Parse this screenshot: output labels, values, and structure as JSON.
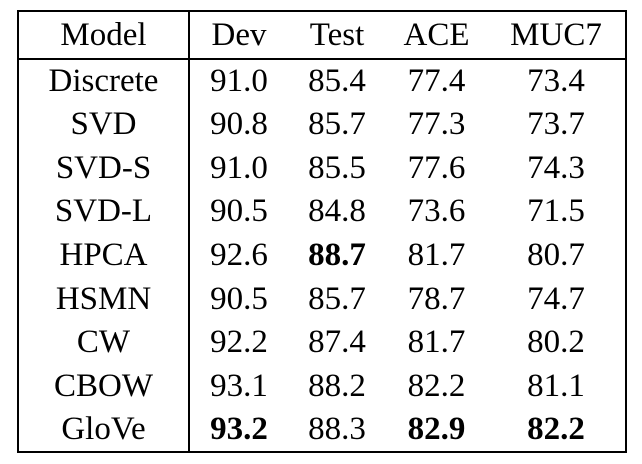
{
  "table": {
    "headers": [
      "Model",
      "Dev",
      "Test",
      "ACE",
      "MUC7"
    ],
    "rows": [
      {
        "model": "Discrete",
        "dev": "91.0",
        "test": "85.4",
        "ace": "77.4",
        "muc7": "73.4"
      },
      {
        "model": "SVD",
        "dev": "90.8",
        "test": "85.7",
        "ace": "77.3",
        "muc7": "73.7"
      },
      {
        "model": "SVD-S",
        "dev": "91.0",
        "test": "85.5",
        "ace": "77.6",
        "muc7": "74.3"
      },
      {
        "model": "SVD-L",
        "dev": "90.5",
        "test": "84.8",
        "ace": "73.6",
        "muc7": "71.5"
      },
      {
        "model": "HPCA",
        "dev": "92.6",
        "test": "88.7",
        "ace": "81.7",
        "muc7": "80.7"
      },
      {
        "model": "HSMN",
        "dev": "90.5",
        "test": "85.7",
        "ace": "78.7",
        "muc7": "74.7"
      },
      {
        "model": "CW",
        "dev": "92.2",
        "test": "87.4",
        "ace": "81.7",
        "muc7": "80.2"
      },
      {
        "model": "CBOW",
        "dev": "93.1",
        "test": "88.2",
        "ace": "82.2",
        "muc7": "81.1"
      },
      {
        "model": "GloVe",
        "dev": "93.2",
        "test": "88.3",
        "ace": "82.9",
        "muc7": "82.2"
      }
    ]
  }
}
